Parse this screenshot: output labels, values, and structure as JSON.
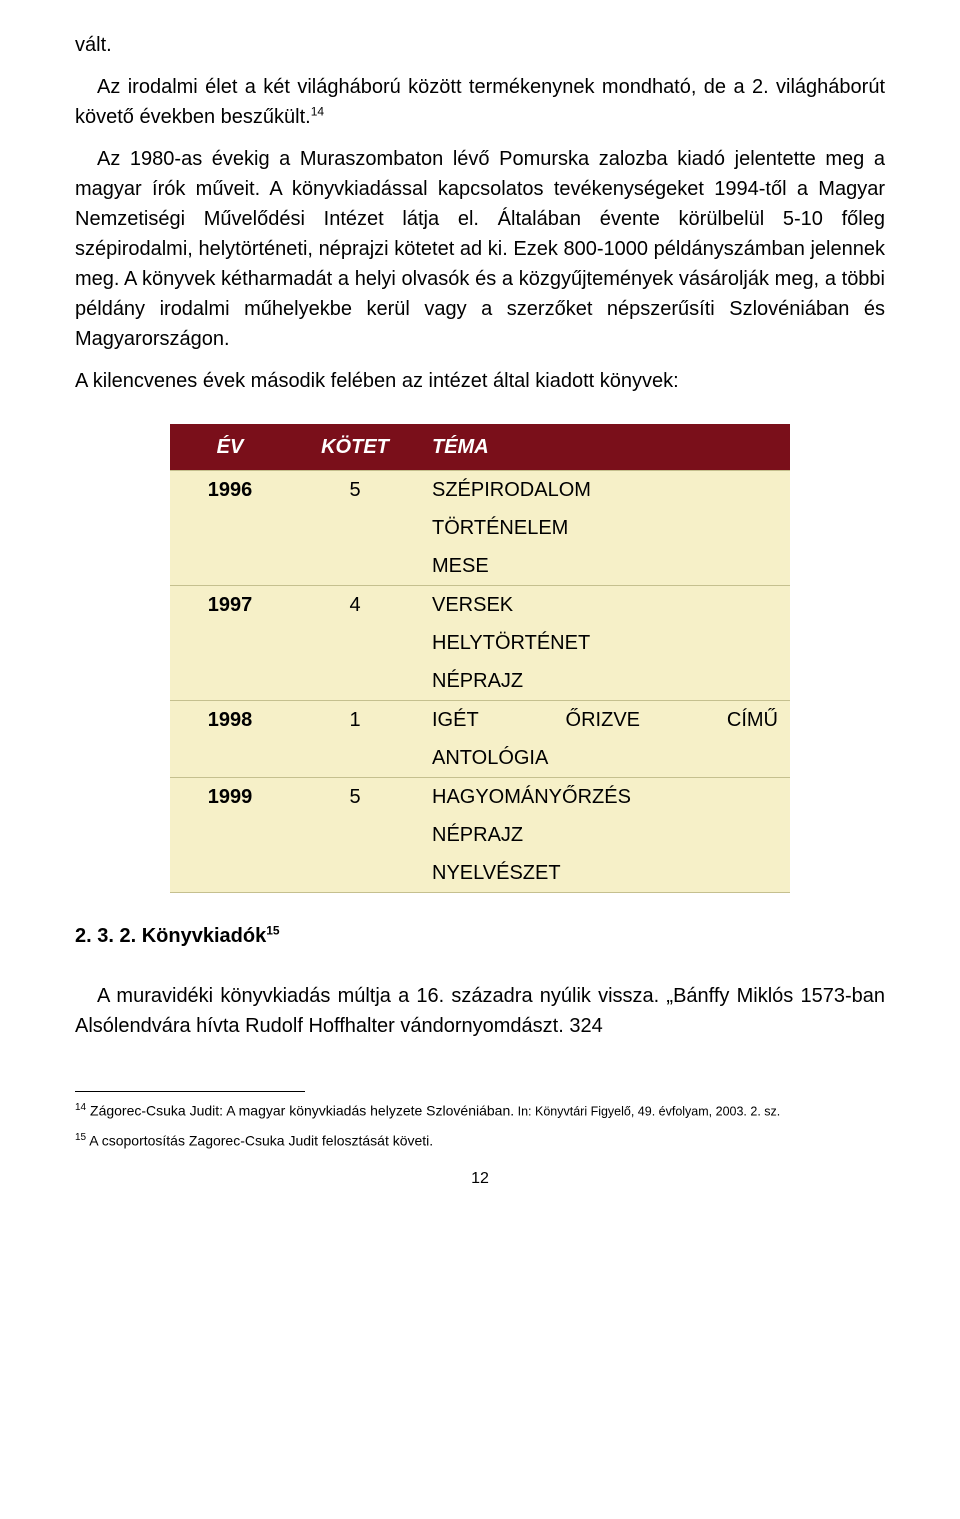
{
  "text": {
    "first_fragment": "vált.",
    "para1_a": "Az irodalmi élet a két világháború között termékenynek mondható, de a 2. világháborút követő években beszűkült.",
    "fnref1": "14",
    "para2": "Az 1980-as évekig a Muraszombaton lévő Pomurska zalozba kiadó jelentette meg a magyar írók műveit. A könyvkiadással kapcsolatos tevékenységeket 1994-től a Magyar Nemzetiségi Művelődési Intézet látja el. Általában évente körülbelül 5-10 főleg szépirodalmi, helytörténeti, néprajzi kötetet ad ki. Ezek 800-1000 példányszámban jelennek meg. A könyvek kétharmadát a helyi olvasók és a közgyűjtemények vásárolják meg, a többi példány irodalmi műhelyekbe kerül vagy a szerzőket népszerűsíti Szlovéniában és Magyarországon.",
    "para3": "A kilencvenes évek második felében az intézet által kiadott könyvek:",
    "section_heading": "2. 3. 2. Könyvkiadók",
    "fnref2": "15",
    "para4": "A muravidéki könyvkiadás múltja a 16. századra nyúlik vissza. „Bánffy Miklós 1573-ban Alsólendvára hívta Rudolf Hoffhalter vándornyomdászt. 324",
    "fn1_num": "14",
    "fn1_text": "Zágorec-Csuka Judit: A magyar könyvkiadás helyzete Szlovéniában.",
    "fn1_source": " In: Könyvtári Figyelő, 49. évfolyam, 2003. 2. sz.",
    "fn2_num": "15",
    "fn2_text": "A csoportosítás Zagorec-Csuka Judit felosztását követi.",
    "page_number": "12"
  },
  "table": {
    "type": "table",
    "header_bg": "#7a0f1a",
    "header_color": "#ffffff",
    "row_bg": "#f6f0c8",
    "row_border": "#c5c08f",
    "columns": [
      "ÉV",
      "KÖTET",
      "TÉMA"
    ],
    "rows": [
      {
        "year": "1996",
        "count": "5",
        "themes": [
          "SZÉPIRODALOM",
          "TÖRTÉNELEM",
          "MESE"
        ]
      },
      {
        "year": "1997",
        "count": "4",
        "themes": [
          "VERSEK",
          "HELYTÖRTÉNET",
          "NÉPRAJZ"
        ]
      },
      {
        "year": "1998",
        "count": "1",
        "themes_justified": [
          [
            "IGÉT",
            "ŐRIZVE",
            "CÍMŰ"
          ],
          [
            "ANTOLÓGIA"
          ]
        ]
      },
      {
        "year": "1999",
        "count": "5",
        "themes": [
          "HAGYOMÁNYŐRZÉS",
          "NÉPRAJZ",
          "NYELVÉSZET"
        ]
      }
    ]
  }
}
